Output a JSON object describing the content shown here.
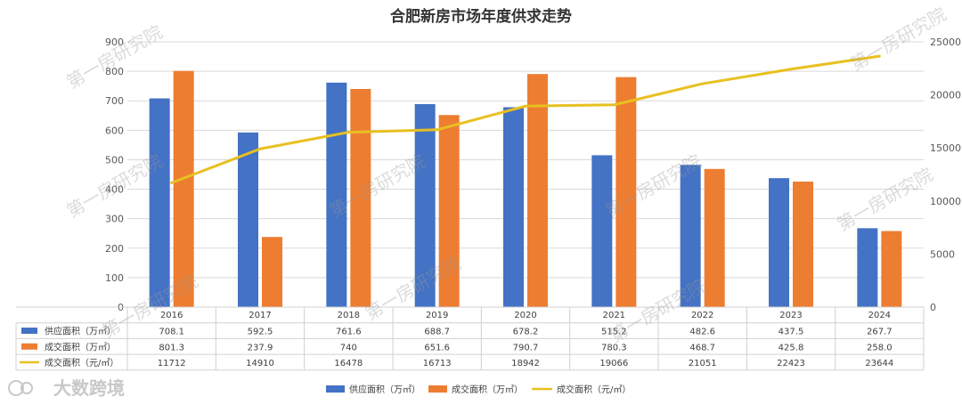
{
  "chart_data": {
    "type": "bar",
    "title": "合肥新房市场年度供求走势",
    "categories": [
      "2016",
      "2017",
      "2018",
      "2019",
      "2020",
      "2021",
      "2022",
      "2023",
      "2024"
    ],
    "series": [
      {
        "name": "供应面积（万㎡）",
        "kind": "bar",
        "axis": "left",
        "color": "#4472C4",
        "values": [
          708.1,
          592.5,
          761.6,
          688.7,
          678.2,
          515.2,
          482.6,
          437.5,
          267.7
        ]
      },
      {
        "name": "成交面积（万㎡）",
        "kind": "bar",
        "axis": "left",
        "color": "#ED7D31",
        "values": [
          801.3,
          237.9,
          740,
          651.6,
          790.7,
          780.3,
          468.7,
          425.8,
          258.0
        ]
      },
      {
        "name": "成交面积（元/㎡）",
        "kind": "line",
        "axis": "right",
        "color": "#E8C021",
        "values": [
          11712,
          14910,
          16478,
          16713,
          18942,
          19066,
          21051,
          22423,
          23644
        ]
      }
    ],
    "table_text": [
      [
        "708.1",
        "592.5",
        "761.6",
        "688.7",
        "678.2",
        "515.2",
        "482.6",
        "437.5",
        "267.7"
      ],
      [
        "801.3",
        "237.9",
        "740",
        "651.6",
        "790.7",
        "780.3",
        "468.7",
        "425.8",
        "258.0"
      ],
      [
        "11712",
        "14910",
        "16478",
        "16713",
        "18942",
        "19066",
        "21051",
        "22423",
        "23644"
      ]
    ],
    "ylim_left": [
      0,
      900
    ],
    "yticks_left": [
      "0",
      "100",
      "200",
      "300",
      "400",
      "500",
      "600",
      "700",
      "800",
      "900"
    ],
    "ylim_right": [
      0,
      25000
    ],
    "yticks_right": [
      "0",
      "5000",
      "10000",
      "15000",
      "20000",
      "25000"
    ],
    "grid": true,
    "legend": "bottom"
  },
  "watermark": "第一房研究院",
  "logo_text": "大数跨境"
}
